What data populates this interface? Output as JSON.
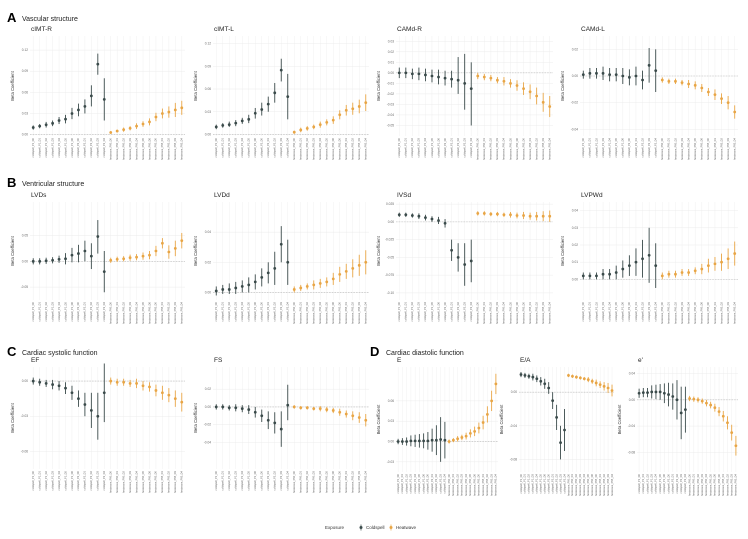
{
  "colors": {
    "coldspell": "#3a4a4a",
    "heatwave": "#e8a545",
    "grid": "#ececec",
    "ref": "#bdbdbd"
  },
  "sections": [
    {
      "letter": "A",
      "title": "Vascular structure"
    },
    {
      "letter": "B",
      "title": "Ventricular structure"
    },
    {
      "letter": "C",
      "title": "Cardiac systolic function"
    },
    {
      "letter": "D",
      "title": "Cardiac diastolic function"
    }
  ],
  "ylabel": "Beta Coefficient",
  "legend": {
    "title": "Exposure",
    "items": [
      "Coldspell",
      "Heatwave"
    ]
  },
  "x_categories": [
    "coldspell_P1_D0",
    "coldspell_P1_D1",
    "coldspell_P1_D2",
    "coldspell_P1_D3",
    "coldspell_P1_D4",
    "coldspell_P1_D5",
    "coldspell_P1_D6",
    "coldspell_P2_D0",
    "coldspell_P2_D1",
    "coldspell_P2_D2",
    "coldspell_P2_D3",
    "coldspell_P2_D4",
    "heatwave_P90_D0",
    "heatwave_P90_D1",
    "heatwave_P90_D2",
    "heatwave_P90_D3",
    "heatwave_P90_D4",
    "heatwave_P90_D5",
    "heatwave_P90_D6",
    "heatwave_P95_D0",
    "heatwave_P95_D1",
    "heatwave_P95_D2",
    "heatwave_P95_D3",
    "heatwave_P95_D4"
  ],
  "chart_data": [
    {
      "type": "scatter",
      "title": "cIMT-R",
      "ylim": [
        -0.002,
        0.14
      ],
      "yticks": [
        0.0,
        0.03,
        0.06,
        0.09,
        0.12
      ],
      "values": [
        0.01,
        0.012,
        0.014,
        0.016,
        0.02,
        0.022,
        0.03,
        0.035,
        0.04,
        0.055,
        0.1,
        0.05,
        0.003,
        0.005,
        0.007,
        0.009,
        0.012,
        0.015,
        0.018,
        0.025,
        0.03,
        0.032,
        0.035,
        0.038
      ],
      "lower": [
        0.007,
        0.009,
        0.01,
        0.012,
        0.015,
        0.016,
        0.022,
        0.026,
        0.03,
        0.04,
        0.085,
        0.02,
        0.001,
        0.003,
        0.004,
        0.006,
        0.008,
        0.011,
        0.013,
        0.019,
        0.023,
        0.024,
        0.025,
        0.028
      ],
      "upper": [
        0.013,
        0.015,
        0.018,
        0.02,
        0.025,
        0.028,
        0.038,
        0.044,
        0.05,
        0.07,
        0.115,
        0.08,
        0.005,
        0.007,
        0.01,
        0.012,
        0.016,
        0.019,
        0.023,
        0.031,
        0.037,
        0.04,
        0.045,
        0.048
      ]
    },
    {
      "type": "scatter",
      "title": "cIMT-L",
      "ylim": [
        -0.002,
        0.13
      ],
      "yticks": [
        0.0,
        0.03,
        0.06,
        0.09,
        0.12
      ],
      "values": [
        0.01,
        0.012,
        0.013,
        0.015,
        0.018,
        0.02,
        0.028,
        0.033,
        0.04,
        0.055,
        0.085,
        0.05,
        0.003,
        0.006,
        0.008,
        0.01,
        0.013,
        0.016,
        0.019,
        0.026,
        0.032,
        0.034,
        0.037,
        0.042
      ],
      "lower": [
        0.007,
        0.009,
        0.01,
        0.011,
        0.014,
        0.015,
        0.021,
        0.025,
        0.03,
        0.042,
        0.07,
        0.02,
        0.001,
        0.003,
        0.005,
        0.007,
        0.009,
        0.012,
        0.014,
        0.02,
        0.025,
        0.026,
        0.028,
        0.031
      ],
      "upper": [
        0.013,
        0.015,
        0.017,
        0.019,
        0.022,
        0.026,
        0.035,
        0.042,
        0.05,
        0.068,
        0.1,
        0.08,
        0.005,
        0.009,
        0.011,
        0.013,
        0.017,
        0.02,
        0.024,
        0.032,
        0.039,
        0.042,
        0.046,
        0.053
      ]
    },
    {
      "type": "scatter",
      "title": "CAMd-R",
      "ylim": [
        -0.06,
        0.035
      ],
      "yticks": [
        -0.05,
        -0.04,
        -0.03,
        -0.02,
        -0.01,
        0.0,
        0.01,
        0.02,
        0.03
      ],
      "values": [
        0.0,
        0.0,
        -0.001,
        -0.001,
        -0.002,
        -0.003,
        -0.004,
        -0.005,
        -0.006,
        -0.007,
        -0.01,
        -0.015,
        -0.003,
        -0.004,
        -0.005,
        -0.007,
        -0.008,
        -0.01,
        -0.012,
        -0.015,
        -0.018,
        -0.022,
        -0.028,
        -0.032
      ],
      "lower": [
        -0.005,
        -0.005,
        -0.006,
        -0.007,
        -0.008,
        -0.009,
        -0.011,
        -0.012,
        -0.014,
        -0.02,
        -0.035,
        -0.05,
        -0.006,
        -0.007,
        -0.008,
        -0.01,
        -0.012,
        -0.014,
        -0.017,
        -0.021,
        -0.025,
        -0.03,
        -0.037,
        -0.042
      ],
      "upper": [
        0.005,
        0.005,
        0.004,
        0.005,
        0.004,
        0.003,
        0.003,
        0.002,
        0.002,
        0.015,
        0.018,
        0.01,
        0.0,
        -0.001,
        -0.002,
        -0.004,
        -0.004,
        -0.006,
        -0.007,
        -0.009,
        -0.011,
        -0.014,
        -0.019,
        -0.022
      ]
    },
    {
      "type": "scatter",
      "title": "CAMd-L",
      "ylim": [
        -0.045,
        0.03
      ],
      "yticks": [
        -0.04,
        -0.02,
        0.0,
        0.02
      ],
      "values": [
        0.001,
        0.002,
        0.002,
        0.002,
        0.001,
        0.001,
        0.0,
        -0.001,
        0.0,
        -0.003,
        0.008,
        0.004,
        -0.003,
        -0.004,
        -0.004,
        -0.005,
        -0.006,
        -0.007,
        -0.009,
        -0.012,
        -0.014,
        -0.017,
        -0.02,
        -0.027
      ],
      "lower": [
        -0.002,
        -0.002,
        -0.002,
        -0.003,
        -0.004,
        -0.004,
        -0.006,
        -0.007,
        -0.007,
        -0.01,
        -0.005,
        -0.012,
        -0.005,
        -0.006,
        -0.006,
        -0.007,
        -0.009,
        -0.01,
        -0.012,
        -0.015,
        -0.018,
        -0.021,
        -0.025,
        -0.032
      ],
      "upper": [
        0.004,
        0.006,
        0.006,
        0.007,
        0.006,
        0.006,
        0.006,
        0.005,
        0.007,
        0.004,
        0.021,
        0.02,
        -0.001,
        -0.002,
        -0.002,
        -0.003,
        -0.003,
        -0.004,
        -0.006,
        -0.009,
        -0.01,
        -0.013,
        -0.015,
        -0.022
      ]
    },
    {
      "type": "scatter",
      "title": "LVDs",
      "ylim": [
        -0.075,
        0.115
      ],
      "yticks": [
        -0.05,
        0.0,
        0.05
      ],
      "values": [
        0.0,
        0.0,
        0.001,
        0.002,
        0.004,
        0.005,
        0.012,
        0.015,
        0.02,
        0.01,
        0.048,
        -0.02,
        0.002,
        0.004,
        0.005,
        0.007,
        0.008,
        0.01,
        0.012,
        0.02,
        0.035,
        0.018,
        0.025,
        0.04
      ],
      "lower": [
        -0.006,
        -0.006,
        -0.005,
        -0.004,
        -0.003,
        -0.006,
        -0.002,
        -0.002,
        0.0,
        -0.015,
        0.015,
        -0.06,
        -0.003,
        -0.001,
        0.0,
        0.001,
        0.002,
        0.003,
        0.004,
        0.01,
        0.025,
        0.005,
        0.01,
        0.025
      ],
      "upper": [
        0.006,
        0.006,
        0.007,
        0.008,
        0.011,
        0.016,
        0.026,
        0.032,
        0.04,
        0.035,
        0.08,
        0.02,
        0.007,
        0.009,
        0.01,
        0.013,
        0.014,
        0.017,
        0.02,
        0.03,
        0.045,
        0.031,
        0.04,
        0.055
      ]
    },
    {
      "type": "scatter",
      "title": "LVDd",
      "ylim": [
        -0.005,
        0.06
      ],
      "yticks": [
        0.0,
        0.02,
        0.04
      ],
      "values": [
        0.001,
        0.002,
        0.002,
        0.003,
        0.004,
        0.005,
        0.007,
        0.01,
        0.013,
        0.016,
        0.032,
        0.02,
        0.002,
        0.003,
        0.004,
        0.005,
        0.006,
        0.007,
        0.009,
        0.012,
        0.014,
        0.016,
        0.018,
        0.02
      ],
      "lower": [
        -0.002,
        -0.001,
        -0.001,
        -0.001,
        0.0,
        0.0,
        0.002,
        0.004,
        0.006,
        0.005,
        0.02,
        0.005,
        0.0,
        0.001,
        0.002,
        0.002,
        0.003,
        0.004,
        0.005,
        0.007,
        0.009,
        0.01,
        0.011,
        0.012
      ],
      "upper": [
        0.004,
        0.005,
        0.006,
        0.007,
        0.008,
        0.01,
        0.012,
        0.016,
        0.02,
        0.027,
        0.044,
        0.035,
        0.004,
        0.005,
        0.006,
        0.008,
        0.009,
        0.01,
        0.013,
        0.017,
        0.019,
        0.022,
        0.025,
        0.028
      ]
    },
    {
      "type": "scatter",
      "title": "IVSd",
      "ylim": [
        -0.11,
        0.028
      ],
      "yticks": [
        -0.1,
        -0.075,
        -0.05,
        -0.025,
        0.0,
        0.025
      ],
      "values": [
        0.01,
        0.01,
        0.009,
        0.008,
        0.006,
        0.004,
        0.002,
        -0.002,
        -0.04,
        -0.05,
        -0.06,
        -0.055,
        0.012,
        0.012,
        0.011,
        0.011,
        0.01,
        0.01,
        0.009,
        0.009,
        0.008,
        0.008,
        0.008,
        0.008
      ],
      "lower": [
        0.007,
        0.007,
        0.006,
        0.004,
        0.002,
        0.0,
        -0.003,
        -0.008,
        -0.055,
        -0.07,
        -0.09,
        -0.085,
        0.009,
        0.009,
        0.008,
        0.008,
        0.007,
        0.006,
        0.005,
        0.004,
        0.003,
        0.002,
        0.001,
        0.0
      ],
      "upper": [
        0.013,
        0.013,
        0.012,
        0.012,
        0.01,
        0.008,
        0.007,
        0.004,
        -0.025,
        -0.03,
        -0.03,
        -0.025,
        0.015,
        0.015,
        0.014,
        0.014,
        0.013,
        0.014,
        0.013,
        0.014,
        0.013,
        0.014,
        0.015,
        0.016
      ]
    },
    {
      "type": "scatter",
      "title": "LVPWd",
      "ylim": [
        -0.012,
        0.045
      ],
      "yticks": [
        0.0,
        0.01,
        0.02,
        0.03,
        0.04
      ],
      "values": [
        0.002,
        0.002,
        0.002,
        0.003,
        0.003,
        0.004,
        0.006,
        0.008,
        0.01,
        0.012,
        0.014,
        0.008,
        0.002,
        0.003,
        0.003,
        0.004,
        0.004,
        0.005,
        0.006,
        0.008,
        0.009,
        0.01,
        0.012,
        0.015
      ],
      "lower": [
        0.0,
        0.0,
        0.0,
        0.0,
        0.0,
        0.0,
        0.001,
        0.002,
        0.002,
        0.001,
        -0.002,
        -0.005,
        0.0,
        0.001,
        0.001,
        0.002,
        0.002,
        0.003,
        0.003,
        0.004,
        0.005,
        0.005,
        0.006,
        0.008
      ],
      "upper": [
        0.004,
        0.004,
        0.004,
        0.006,
        0.006,
        0.008,
        0.011,
        0.014,
        0.018,
        0.023,
        0.03,
        0.021,
        0.004,
        0.005,
        0.005,
        0.006,
        0.006,
        0.007,
        0.009,
        0.012,
        0.013,
        0.015,
        0.018,
        0.022
      ]
    },
    {
      "type": "scatter",
      "title": "EF",
      "ylim": [
        -0.075,
        0.012
      ],
      "yticks": [
        -0.06,
        -0.03,
        0.0
      ],
      "values": [
        0.0,
        -0.001,
        -0.002,
        -0.003,
        -0.004,
        -0.006,
        -0.01,
        -0.015,
        -0.02,
        -0.025,
        -0.03,
        -0.01,
        0.0,
        -0.001,
        -0.001,
        -0.002,
        -0.002,
        -0.004,
        -0.005,
        -0.008,
        -0.01,
        -0.012,
        -0.015,
        -0.018
      ],
      "lower": [
        -0.003,
        -0.004,
        -0.005,
        -0.007,
        -0.008,
        -0.011,
        -0.016,
        -0.022,
        -0.03,
        -0.04,
        -0.05,
        -0.035,
        -0.003,
        -0.004,
        -0.004,
        -0.005,
        -0.006,
        -0.008,
        -0.009,
        -0.013,
        -0.016,
        -0.018,
        -0.022,
        -0.026
      ],
      "upper": [
        0.003,
        0.002,
        0.001,
        0.001,
        0.0,
        -0.001,
        -0.004,
        -0.008,
        -0.01,
        -0.01,
        -0.01,
        0.015,
        0.003,
        0.002,
        0.002,
        0.001,
        0.002,
        0.0,
        -0.001,
        -0.003,
        -0.004,
        -0.006,
        -0.008,
        -0.01
      ]
    },
    {
      "type": "scatter",
      "title": "FS",
      "ylim": [
        -0.07,
        0.045
      ],
      "yticks": [
        -0.04,
        -0.02,
        0.0,
        0.02
      ],
      "values": [
        0.0,
        0.0,
        -0.001,
        -0.001,
        -0.002,
        -0.003,
        -0.006,
        -0.01,
        -0.015,
        -0.018,
        -0.025,
        0.002,
        0.0,
        -0.001,
        -0.001,
        -0.002,
        -0.002,
        -0.003,
        -0.004,
        -0.006,
        -0.008,
        -0.01,
        -0.012,
        -0.015
      ],
      "lower": [
        -0.003,
        -0.003,
        -0.004,
        -0.005,
        -0.006,
        -0.008,
        -0.012,
        -0.017,
        -0.025,
        -0.03,
        -0.045,
        -0.015,
        -0.002,
        -0.003,
        -0.003,
        -0.004,
        -0.005,
        -0.006,
        -0.007,
        -0.01,
        -0.012,
        -0.015,
        -0.018,
        -0.022
      ],
      "upper": [
        0.003,
        0.003,
        0.002,
        0.003,
        0.002,
        0.002,
        0.0,
        -0.003,
        -0.005,
        -0.006,
        -0.005,
        0.025,
        0.002,
        0.001,
        0.001,
        0.0,
        0.001,
        0.0,
        -0.001,
        -0.002,
        -0.004,
        -0.005,
        -0.006,
        -0.008
      ]
    },
    {
      "type": "scatter",
      "title": "E",
      "ylim": [
        -0.045,
        0.11
      ],
      "yticks": [
        -0.03,
        0.0,
        0.03,
        0.06
      ],
      "values": [
        0.0,
        0.0,
        0.0,
        0.001,
        0.001,
        0.001,
        0.001,
        0.001,
        0.002,
        0.002,
        0.003,
        0.002,
        0.0,
        0.002,
        0.004,
        0.006,
        0.008,
        0.012,
        0.015,
        0.02,
        0.028,
        0.04,
        0.06,
        0.085
      ],
      "lower": [
        -0.004,
        -0.005,
        -0.006,
        -0.007,
        -0.008,
        -0.009,
        -0.01,
        -0.012,
        -0.015,
        -0.02,
        -0.03,
        -0.025,
        -0.003,
        -0.001,
        0.0,
        0.002,
        0.003,
        0.006,
        0.008,
        0.012,
        0.018,
        0.028,
        0.045,
        0.07
      ],
      "upper": [
        0.004,
        0.005,
        0.006,
        0.009,
        0.01,
        0.011,
        0.012,
        0.014,
        0.019,
        0.024,
        0.036,
        0.029,
        0.003,
        0.005,
        0.008,
        0.01,
        0.013,
        0.018,
        0.022,
        0.028,
        0.038,
        0.052,
        0.075,
        0.1
      ]
    },
    {
      "type": "scatter",
      "title": "E/A",
      "ylim": [
        -0.095,
        0.03
      ],
      "yticks": [
        -0.08,
        -0.04,
        0.0
      ],
      "values": [
        0.021,
        0.02,
        0.019,
        0.018,
        0.016,
        0.013,
        0.01,
        0.005,
        -0.01,
        -0.03,
        -0.06,
        -0.045,
        0.02,
        0.019,
        0.018,
        0.017,
        0.016,
        0.015,
        0.013,
        0.011,
        0.009,
        0.007,
        0.005,
        0.002
      ],
      "lower": [
        0.018,
        0.017,
        0.016,
        0.014,
        0.012,
        0.008,
        0.004,
        -0.002,
        -0.02,
        -0.045,
        -0.08,
        -0.07,
        0.018,
        0.017,
        0.016,
        0.015,
        0.014,
        0.012,
        0.01,
        0.007,
        0.005,
        0.002,
        -0.001,
        -0.005
      ],
      "upper": [
        0.024,
        0.023,
        0.022,
        0.022,
        0.02,
        0.018,
        0.016,
        0.012,
        0.0,
        -0.015,
        -0.04,
        -0.02,
        0.022,
        0.021,
        0.02,
        0.019,
        0.018,
        0.018,
        0.016,
        0.015,
        0.013,
        0.012,
        0.011,
        0.009
      ]
    },
    {
      "type": "scatter",
      "title": "e'",
      "ylim": [
        -0.11,
        0.05
      ],
      "yticks": [
        -0.08,
        -0.04,
        0.0,
        0.04
      ],
      "values": [
        0.01,
        0.011,
        0.011,
        0.012,
        0.012,
        0.012,
        0.01,
        0.008,
        0.005,
        0.0,
        -0.02,
        -0.015,
        0.002,
        0.001,
        0.0,
        -0.002,
        -0.005,
        -0.008,
        -0.012,
        -0.018,
        -0.025,
        -0.035,
        -0.05,
        -0.07
      ],
      "lower": [
        0.003,
        0.004,
        0.004,
        0.002,
        0.001,
        0.0,
        -0.005,
        -0.01,
        -0.015,
        -0.03,
        -0.06,
        -0.05,
        -0.002,
        -0.003,
        -0.004,
        -0.006,
        -0.01,
        -0.013,
        -0.018,
        -0.025,
        -0.033,
        -0.045,
        -0.062,
        -0.085
      ],
      "upper": [
        0.017,
        0.018,
        0.018,
        0.022,
        0.023,
        0.024,
        0.025,
        0.026,
        0.025,
        0.03,
        0.02,
        0.02,
        0.006,
        0.005,
        0.004,
        0.002,
        0.0,
        -0.003,
        -0.006,
        -0.011,
        -0.017,
        -0.025,
        -0.038,
        -0.055
      ]
    }
  ]
}
